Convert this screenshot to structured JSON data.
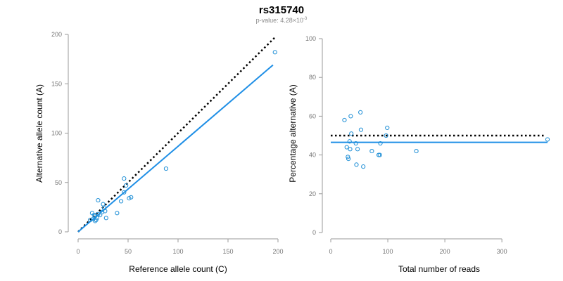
{
  "title": "rs315740",
  "subtitle": {
    "prefix": "p-value: 4.28×10",
    "exponent": "-3"
  },
  "colors": {
    "points": "#1f8fd6",
    "fit": "#1f8fe6",
    "reference": "#000000"
  },
  "chart_data": [
    {
      "type": "scatter",
      "xlabel": "Reference allele count (C)",
      "ylabel": "Alternative allele count (A)",
      "xlim": [
        0,
        200
      ],
      "ylim": [
        0,
        200
      ],
      "xticks": [
        0,
        50,
        100,
        150,
        200
      ],
      "yticks": [
        0,
        50,
        100,
        150,
        200
      ],
      "points": [
        [
          12,
          12
        ],
        [
          14,
          19
        ],
        [
          15,
          13
        ],
        [
          16,
          17
        ],
        [
          17,
          11
        ],
        [
          17,
          16
        ],
        [
          18,
          12
        ],
        [
          19,
          14
        ],
        [
          20,
          18
        ],
        [
          20,
          32
        ],
        [
          22,
          17
        ],
        [
          24,
          20
        ],
        [
          25,
          28
        ],
        [
          26,
          24
        ],
        [
          27,
          21
        ],
        [
          28,
          14
        ],
        [
          39,
          19
        ],
        [
          43,
          31
        ],
        [
          46,
          40
        ],
        [
          46,
          54
        ],
        [
          48,
          47
        ],
        [
          51,
          34
        ],
        [
          53,
          35
        ],
        [
          88,
          64
        ],
        [
          197,
          182
        ]
      ],
      "reference_line": {
        "style": "dotted",
        "x": [
          0,
          197
        ],
        "y": [
          0,
          197
        ]
      },
      "fit_line": {
        "style": "solid",
        "x": [
          0,
          195
        ],
        "y": [
          0,
          169
        ]
      }
    },
    {
      "type": "scatter",
      "xlabel": "Total number of reads",
      "ylabel": "Percentage alternative (A)",
      "xlim": [
        0,
        380
      ],
      "ylim": [
        0,
        100
      ],
      "xticks": [
        0,
        100,
        200,
        300
      ],
      "yticks": [
        0,
        20,
        40,
        60,
        80,
        100
      ],
      "points": [
        [
          24,
          58
        ],
        [
          28,
          44
        ],
        [
          30,
          39
        ],
        [
          31,
          38
        ],
        [
          33,
          47
        ],
        [
          34,
          43
        ],
        [
          35,
          60
        ],
        [
          36,
          51
        ],
        [
          44,
          46
        ],
        [
          45,
          35
        ],
        [
          47,
          43
        ],
        [
          52,
          62
        ],
        [
          53,
          53
        ],
        [
          57,
          34
        ],
        [
          72,
          42
        ],
        [
          84,
          40
        ],
        [
          86,
          40
        ],
        [
          87,
          46
        ],
        [
          97,
          50
        ],
        [
          99,
          54
        ],
        [
          150,
          42
        ],
        [
          380,
          48
        ]
      ],
      "reference_line": {
        "style": "dotted",
        "x": [
          0,
          375
        ],
        "y": [
          50,
          50
        ]
      },
      "fit_line": {
        "style": "solid",
        "x": [
          0,
          380
        ],
        "y": [
          46.5,
          46.5
        ]
      }
    }
  ]
}
